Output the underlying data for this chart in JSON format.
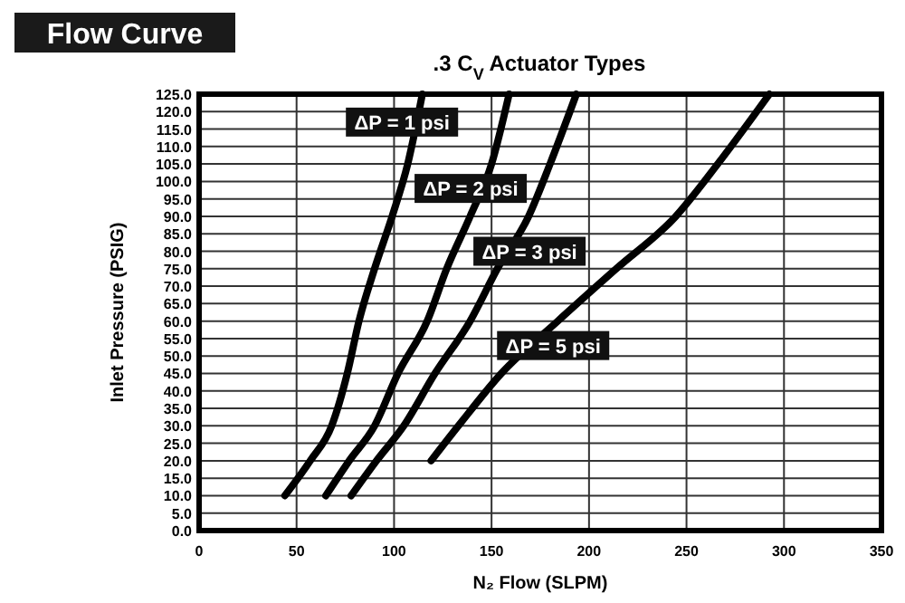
{
  "chart_data": {
    "type": "line",
    "title": "Flow Curve",
    "subtitle": ".3 C$_{V}$ Actuator Types",
    "xlabel": "N₂ Flow (SLPM)",
    "ylabel": "Inlet Pressure (PSIG)",
    "xlim": [
      0,
      350
    ],
    "xticks": [
      0,
      50,
      100,
      150,
      200,
      250,
      300,
      350
    ],
    "ylim": [
      0,
      125
    ],
    "yticks": [
      {
        "value": 0,
        "label": "0.0"
      },
      {
        "value": 5,
        "label": "5.0"
      },
      {
        "value": 10,
        "label": "10.0"
      },
      {
        "value": 15,
        "label": "15.0"
      },
      {
        "value": 20,
        "label": "20.0"
      },
      {
        "value": 25,
        "label": "25.0"
      },
      {
        "value": 30,
        "label": "30.0"
      },
      {
        "value": 35,
        "label": "35.0"
      },
      {
        "value": 40,
        "label": "40.0"
      },
      {
        "value": 45,
        "label": "45.0"
      },
      {
        "value": 50,
        "label": "50.0"
      },
      {
        "value": 55,
        "label": "55.0"
      },
      {
        "value": 60,
        "label": "60.0"
      },
      {
        "value": 65,
        "label": "65.0"
      },
      {
        "value": 70,
        "label": "70.0"
      },
      {
        "value": 75,
        "label": "75.0"
      },
      {
        "value": 80,
        "label": "80.0"
      },
      {
        "value": 85,
        "label": "85.0"
      },
      {
        "value": 90,
        "label": "90.0"
      },
      {
        "value": 95,
        "label": "95.0"
      },
      {
        "value": 100,
        "label": "100.0"
      },
      {
        "value": 105,
        "label": "105.0"
      },
      {
        "value": 110,
        "label": "110.0"
      },
      {
        "value": 115,
        "label": "115.0"
      },
      {
        "value": 120,
        "label": "120.0"
      },
      {
        "value": 125,
        "label": "125.0"
      }
    ],
    "grid": true,
    "marker": "none",
    "line_style": "solid",
    "series": [
      {
        "name": "ΔP = 1 psi",
        "color": "#000000",
        "x": [
          44,
          57,
          68,
          76,
          82,
          90,
          99,
          107,
          114.5
        ],
        "values": [
          10,
          20,
          30,
          45,
          60,
          75,
          90,
          105,
          125
        ]
      },
      {
        "name": "ΔP = 2 psi",
        "color": "#000000",
        "x": [
          65,
          77,
          90,
          102,
          117,
          127,
          139,
          150,
          159
        ],
        "values": [
          10,
          20,
          30,
          45,
          60,
          75,
          90,
          105,
          125
        ]
      },
      {
        "name": "ΔP = 3 psi",
        "color": "#000000",
        "x": [
          78,
          91,
          105,
          121,
          139,
          153,
          169,
          180,
          193.5
        ],
        "values": [
          10,
          20,
          30,
          45,
          60,
          75,
          90,
          105,
          125
        ]
      },
      {
        "name": "ΔP = 5 psi",
        "color": "#000000",
        "x": [
          119,
          133,
          155,
          184,
          214,
          244.5,
          266,
          292.5
        ],
        "values": [
          20,
          30,
          45,
          60,
          75,
          90,
          105,
          125
        ]
      }
    ]
  }
}
